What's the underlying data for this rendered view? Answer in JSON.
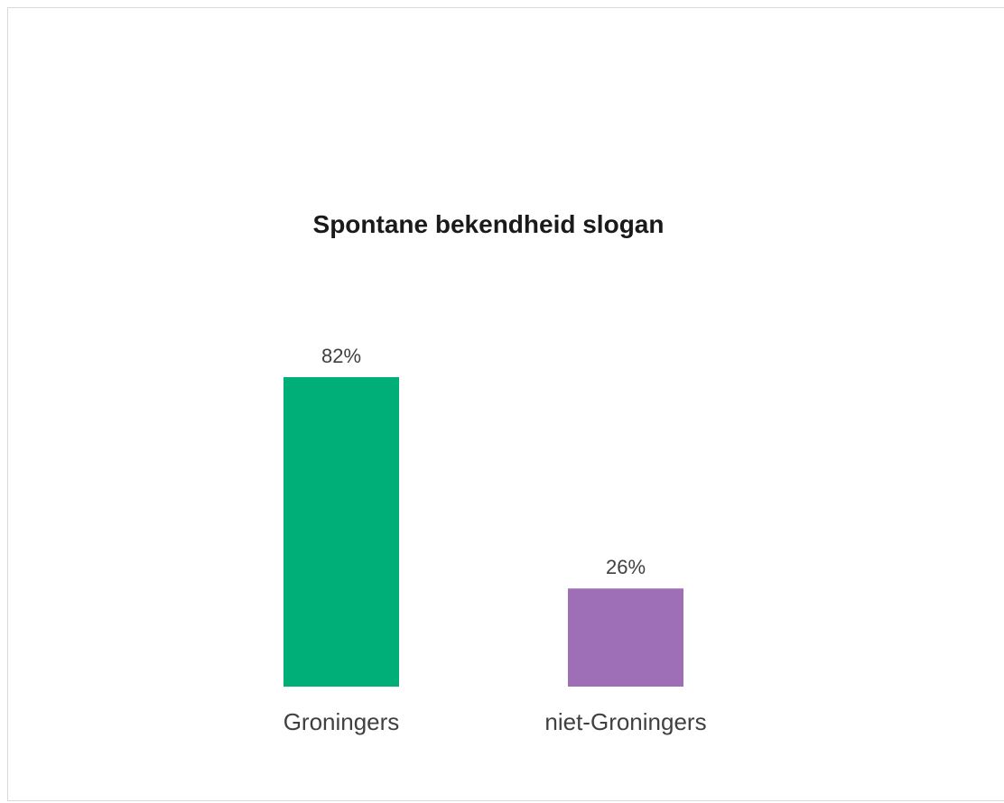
{
  "chart_data": {
    "type": "bar",
    "title": "Spontane bekendheid slogan",
    "categories": [
      "Groningers",
      "niet-Groningers"
    ],
    "values": [
      82,
      26
    ],
    "value_labels": [
      "82%",
      "26%"
    ],
    "colors": [
      "#00ae77",
      "#9e6fb6"
    ],
    "ylim": [
      0,
      100
    ],
    "grid": false,
    "legend": "none"
  }
}
